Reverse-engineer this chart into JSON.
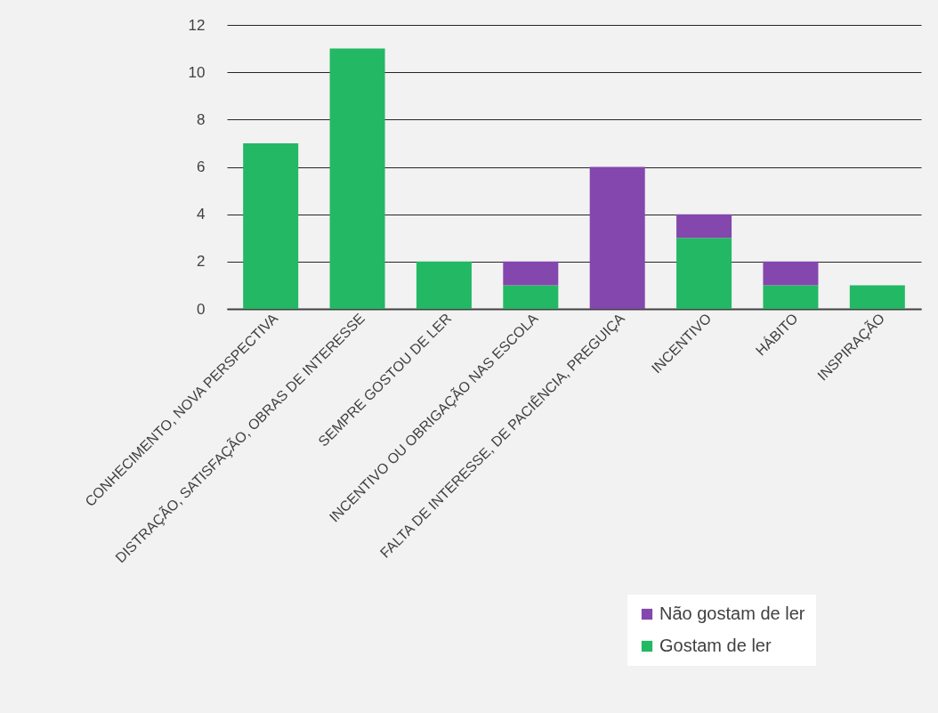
{
  "chart_data": {
    "type": "bar",
    "stacked": true,
    "categories": [
      "CONHECIMENTO, NOVA PERSPECTIVA",
      "DISTRAÇÃO, SATISFAÇÃO, OBRAS DE INTERESSE",
      "SEMPRE GOSTOU DE LER",
      "INCENTIVO OU OBRIGAÇÃO NAS ESCOLA",
      "FALTA DE INTERESSE, DE PACIÊNCIA, PREGUIÇA",
      "INCENTIVO",
      "HÁBITO",
      "INSPIRAÇÃO"
    ],
    "series": [
      {
        "name": "Gostam de ler",
        "color": "#23b864",
        "values": [
          7,
          11,
          2,
          1,
          0,
          3,
          1,
          1
        ]
      },
      {
        "name": "Não gostam de ler",
        "color": "#8447ad",
        "values": [
          0,
          0,
          0,
          1,
          6,
          1,
          1,
          0
        ]
      }
    ],
    "ylim": [
      0,
      12
    ],
    "yticks": [
      0,
      2,
      4,
      6,
      8,
      10,
      12
    ],
    "grid": "y",
    "legend": "bottom right"
  }
}
